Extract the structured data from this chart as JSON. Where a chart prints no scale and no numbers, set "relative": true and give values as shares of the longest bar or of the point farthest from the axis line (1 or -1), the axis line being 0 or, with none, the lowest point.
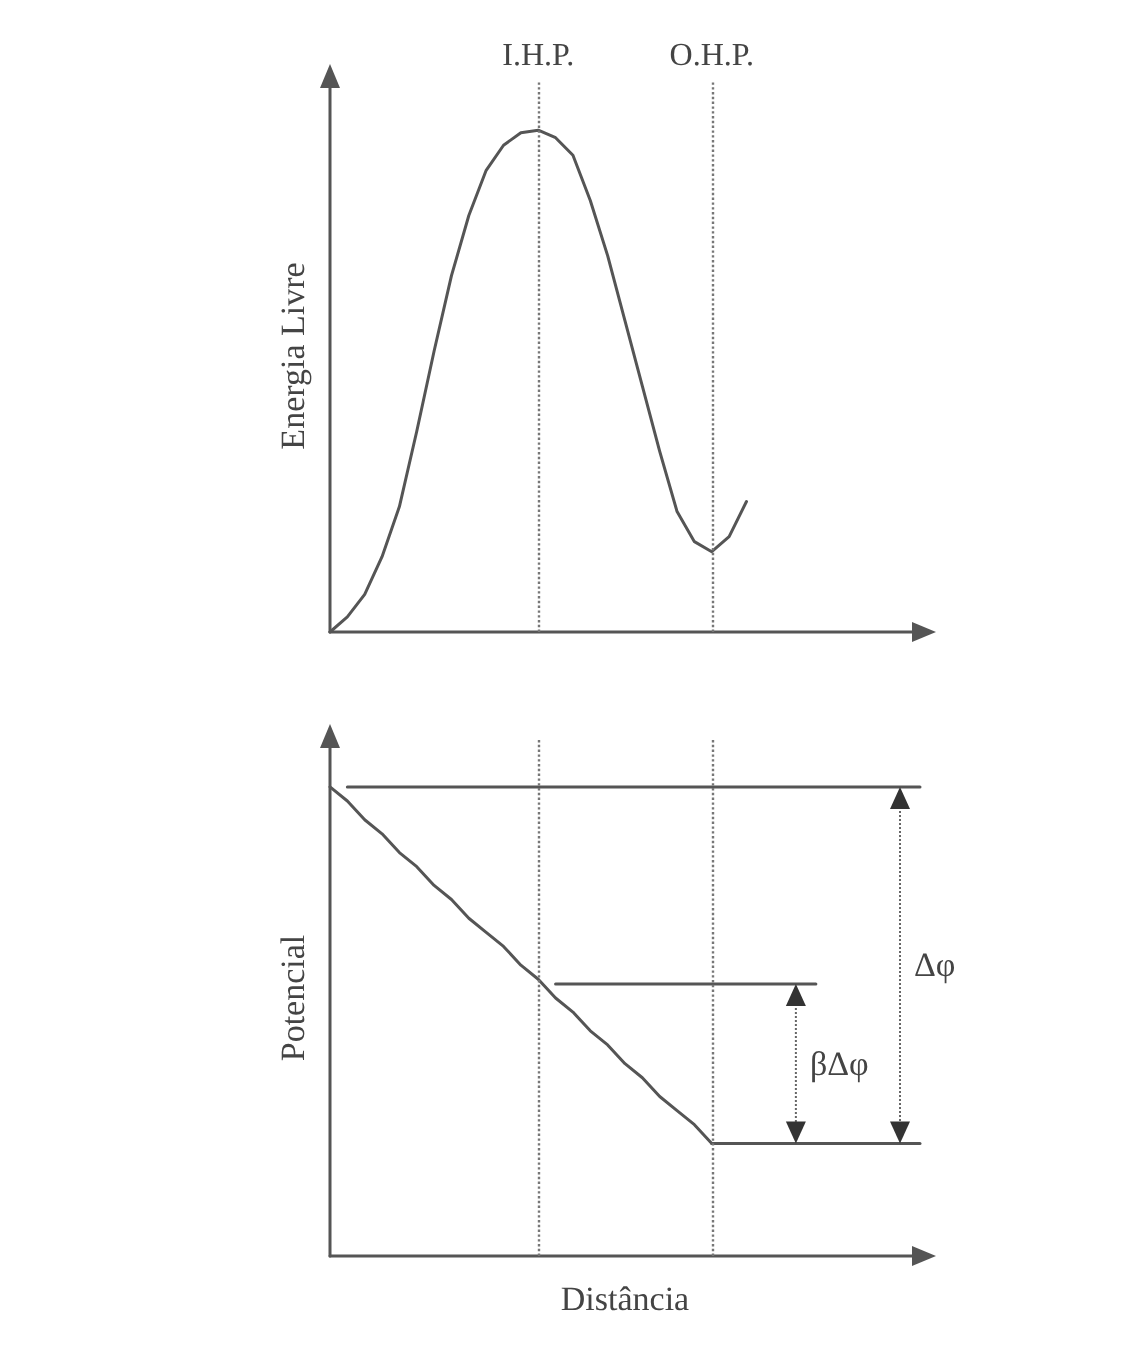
{
  "chart_data": [
    {
      "type": "line",
      "relative": true,
      "ylabel": "Energia Livre",
      "marker": "none",
      "line_style": "solid",
      "categories": [
        null,
        null,
        null,
        null,
        null,
        null,
        null,
        null,
        null,
        null,
        null,
        null,
        null,
        null,
        null,
        null,
        null,
        null,
        null,
        null,
        null,
        null,
        null,
        null,
        null,
        null,
        null,
        null,
        null,
        null,
        null,
        null,
        null,
        null,
        null
      ],
      "series": [
        {
          "color": "#555555",
          "values": [
            0,
            0.03,
            0.075,
            0.15,
            0.25,
            0.4,
            0.56,
            0.71,
            0.83,
            0.92,
            0.97,
            0.995,
            1,
            0.985,
            0.95,
            0.86,
            0.75,
            0.62,
            0.49,
            0.36,
            0.24,
            0.18,
            0.16,
            0.19,
            0.26,
            null,
            null,
            null,
            null,
            null,
            null,
            null,
            null,
            null,
            null
          ]
        }
      ],
      "annotations": [
        "I.H.P.",
        "O.H.P."
      ]
    },
    {
      "type": "line",
      "relative": true,
      "ylabel": "Potencial",
      "xlabel": "Distância",
      "marker": "none",
      "line_style": "solid",
      "categories": [
        null,
        null,
        null,
        null,
        null,
        null,
        null,
        null,
        null,
        null,
        null,
        null,
        null,
        null,
        null,
        null,
        null,
        null,
        null,
        null,
        null,
        null,
        null,
        null,
        null,
        null,
        null,
        null,
        null,
        null,
        null,
        null,
        null,
        null,
        null
      ],
      "series": [
        {
          "color": "#555555",
          "values": [
            1,
            0.97,
            0.93,
            0.9,
            0.86,
            0.83,
            0.79,
            0.76,
            0.72,
            0.69,
            0.66,
            0.62,
            0.59,
            0.55,
            0.52,
            0.48,
            0.45,
            0.41,
            0.38,
            0.34,
            0.31,
            0.28,
            0.24,
            null,
            null,
            null,
            null,
            null,
            null,
            null,
            null,
            null,
            null,
            null,
            null
          ]
        },
        {
          "color": "#555555",
          "values": [
            null,
            1,
            1,
            1,
            1,
            1,
            1,
            1,
            1,
            1,
            1,
            1,
            1,
            1,
            1,
            1,
            1,
            1,
            1,
            1,
            1,
            1,
            1,
            1,
            1,
            1,
            1,
            1,
            1,
            1,
            1,
            1,
            1,
            1,
            1
          ]
        },
        {
          "color": "#555555",
          "values": [
            null,
            null,
            null,
            null,
            null,
            null,
            null,
            null,
            null,
            null,
            null,
            null,
            null,
            0.58,
            0.58,
            0.58,
            0.58,
            0.58,
            0.58,
            0.58,
            0.58,
            0.58,
            0.58,
            0.58,
            0.58,
            0.58,
            0.58,
            0.58,
            0.58,
            null,
            null,
            null,
            null,
            null,
            null
          ]
        },
        {
          "color": "#555555",
          "values": [
            null,
            null,
            null,
            null,
            null,
            null,
            null,
            null,
            null,
            null,
            null,
            null,
            null,
            null,
            null,
            null,
            null,
            null,
            null,
            null,
            null,
            null,
            0.24,
            0.24,
            0.24,
            0.24,
            0.24,
            0.24,
            0.24,
            0.24,
            0.24,
            0.24,
            0.24,
            0.24,
            0.24
          ]
        }
      ],
      "annotations": [
        "Δφ",
        "βΔφ"
      ]
    }
  ]
}
